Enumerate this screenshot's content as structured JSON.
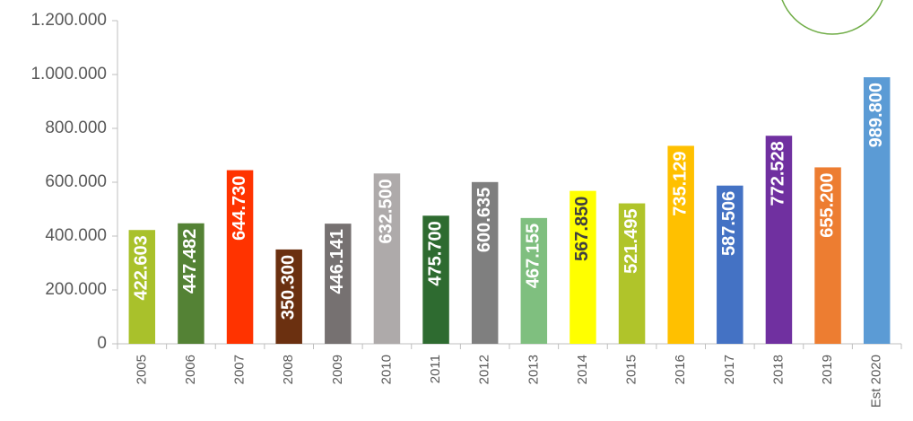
{
  "chart_data": {
    "type": "bar",
    "categories": [
      "2005",
      "2006",
      "2007",
      "2008",
      "2009",
      "2010",
      "2011",
      "2012",
      "2013",
      "2014",
      "2015",
      "2016",
      "2017",
      "2018",
      "2019",
      "Est 2020"
    ],
    "values": [
      422603,
      447482,
      644730,
      350300,
      446141,
      632500,
      475700,
      600635,
      467155,
      567850,
      521495,
      735129,
      587506,
      772528,
      655200,
      989800
    ],
    "value_labels": [
      "422.603",
      "447.482",
      "644.730",
      "350.300",
      "446.141",
      "632.500",
      "475.700",
      "600.635",
      "467.155",
      "567.850",
      "521.495",
      "735.129",
      "587.506",
      "772.528",
      "655.200",
      "989.800"
    ],
    "colors": [
      "#a9c12b",
      "#548235",
      "#ff3300",
      "#6b3010",
      "#767171",
      "#aeaaaa",
      "#2e6b30",
      "#7f7f7f",
      "#7fbf7f",
      "#ffff00",
      "#b0c42a",
      "#ffc000",
      "#4472c4",
      "#7030a0",
      "#ed7d31",
      "#5b9bd5"
    ],
    "label_colors": [
      "#ffffff",
      "#ffffff",
      "#ffffff",
      "#ffffff",
      "#ffffff",
      "#ffffff",
      "#ffffff",
      "#ffffff",
      "#ffffff",
      "#404040",
      "#ffffff",
      "#ffffff",
      "#ffffff",
      "#ffffff",
      "#ffffff",
      "#ffffff"
    ],
    "ylim": [
      0,
      1200000
    ],
    "yticks": [
      0,
      {
        "value": 200000,
        "label": "200.000"
      },
      {
        "value": 400000,
        "label": "400.000"
      },
      {
        "value": 600000,
        "label": "600.000"
      },
      {
        "value": 800000,
        "label": "800.000"
      },
      {
        "value": 1000000,
        "label": "1.000.000"
      },
      {
        "value": 1200000,
        "label": "1.200.000"
      }
    ],
    "grid": false
  }
}
